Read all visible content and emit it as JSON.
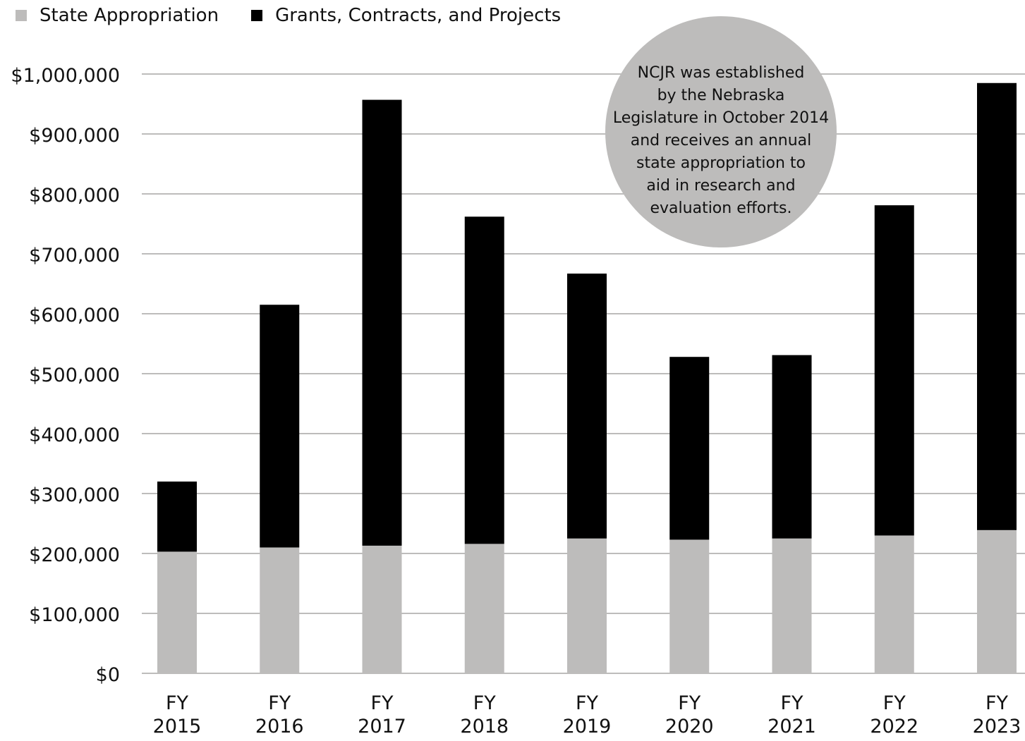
{
  "legend": {
    "items": [
      {
        "label": "State Appropriation",
        "color": "#bdbcbb"
      },
      {
        "label": "Grants, Contracts, and Projects",
        "color": "#000000"
      }
    ]
  },
  "annotation": {
    "lines": [
      "NCJR was established",
      "by the Nebraska",
      "Legislature in October 2014",
      "and receives an annual",
      "state appropriation to",
      "aid in research and",
      "evaluation efforts."
    ],
    "color": "#bdbcbb"
  },
  "chart_data": {
    "type": "bar",
    "stacked": true,
    "categories": [
      [
        "FY",
        "2015"
      ],
      [
        "FY",
        "2016"
      ],
      [
        "FY",
        "2017"
      ],
      [
        "FY",
        "2018"
      ],
      [
        "FY",
        "2019"
      ],
      [
        "FY",
        "2020"
      ],
      [
        "FY",
        "2021"
      ],
      [
        "FY",
        "2022"
      ],
      [
        "FY",
        "2023"
      ]
    ],
    "series": [
      {
        "name": "State Appropriation",
        "color": "#bdbcbb",
        "values": [
          203000,
          210000,
          213000,
          216000,
          225000,
          223000,
          225000,
          230000,
          239000
        ]
      },
      {
        "name": "Grants, Contracts, and Projects",
        "color": "#000000",
        "values": [
          117000,
          405000,
          744000,
          546000,
          442000,
          305000,
          306000,
          551000,
          746000
        ]
      }
    ],
    "ylim": [
      0,
      1000000
    ],
    "yticks": [
      0,
      100000,
      200000,
      300000,
      400000,
      500000,
      600000,
      700000,
      800000,
      900000,
      1000000
    ],
    "ytick_labels": [
      "$0",
      "$100,000",
      "$200,000",
      "$300,000",
      "$400,000",
      "$500,000",
      "$600,000",
      "$700,000",
      "$800,000",
      "$900,000",
      "$1,000,000"
    ],
    "grid": true,
    "legend_position": "top-left",
    "grid_color": "#bdbcbb"
  }
}
